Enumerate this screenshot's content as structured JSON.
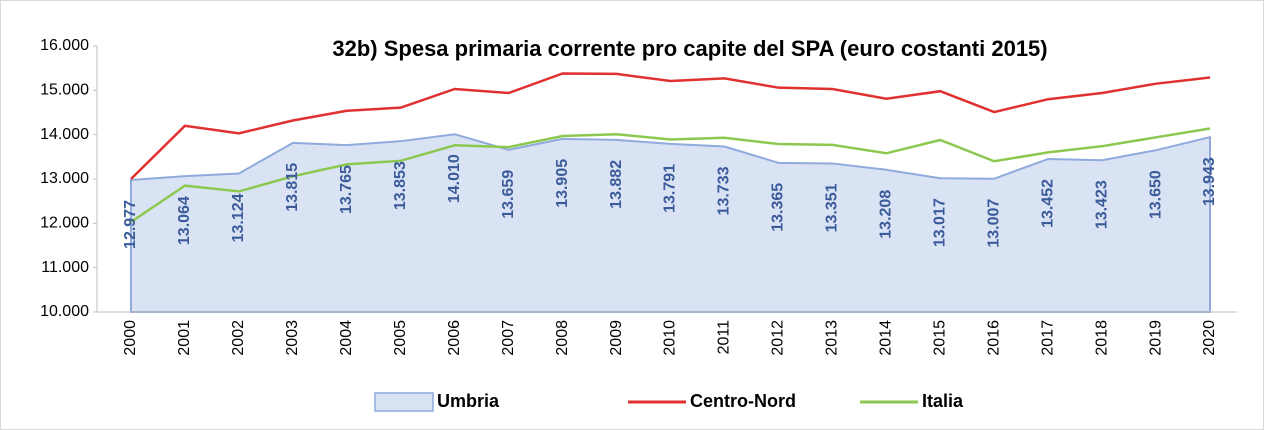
{
  "chart_data": {
    "type": "line",
    "title": "32b) Spesa primaria corrente pro capite del SPA (euro costanti 2015)",
    "categories": [
      "2000",
      "2001",
      "2002",
      "2003",
      "2004",
      "2005",
      "2006",
      "2007",
      "2008",
      "2009",
      "2010",
      "2011",
      "2012",
      "2013",
      "2014",
      "2015",
      "2016",
      "2017",
      "2018",
      "2019",
      "2020"
    ],
    "series": [
      {
        "name": "Umbria",
        "kind": "area",
        "color": "#8faadc",
        "fill": "#dae3f3",
        "values": [
          12977,
          13064,
          13124,
          13815,
          13765,
          13853,
          14010,
          13659,
          13905,
          13882,
          13791,
          13733,
          13365,
          13351,
          13208,
          13017,
          13007,
          13452,
          13423,
          13650,
          13943
        ],
        "value_labels": [
          "12.977",
          "13.064",
          "13.124",
          "13.815",
          "13.765",
          "13.853",
          "14.010",
          "13.659",
          "13.905",
          "13.882",
          "13.791",
          "13.733",
          "13.365",
          "13.351",
          "13.208",
          "13.017",
          "13.007",
          "13.452",
          "13.423",
          "13.650",
          "13.943"
        ]
      },
      {
        "name": "Centro-Nord",
        "kind": "line",
        "color": "#e03030",
        "values": [
          13000,
          14200,
          14030,
          14320,
          14540,
          14610,
          15030,
          14940,
          15380,
          15370,
          15210,
          15270,
          15060,
          15030,
          14810,
          14980,
          14510,
          14800,
          14940,
          15150,
          15290
        ]
      },
      {
        "name": "Italia",
        "kind": "line",
        "color": "#8cc850",
        "values": [
          12030,
          12850,
          12720,
          13060,
          13330,
          13410,
          13760,
          13720,
          13970,
          14010,
          13890,
          13930,
          13790,
          13770,
          13580,
          13880,
          13400,
          13600,
          13740,
          13940,
          14140
        ]
      }
    ],
    "ylim": [
      10000,
      16000
    ],
    "yticks": [
      {
        "value": 10000,
        "label": "10.000"
      },
      {
        "value": 11000,
        "label": "11.000"
      },
      {
        "value": 12000,
        "label": "12.000"
      },
      {
        "value": 13000,
        "label": "13.000"
      },
      {
        "value": 14000,
        "label": "14.000"
      },
      {
        "value": 15000,
        "label": "15.000"
      },
      {
        "value": 16000,
        "label": "16.000"
      }
    ],
    "grid": false,
    "legend": "bottom"
  }
}
